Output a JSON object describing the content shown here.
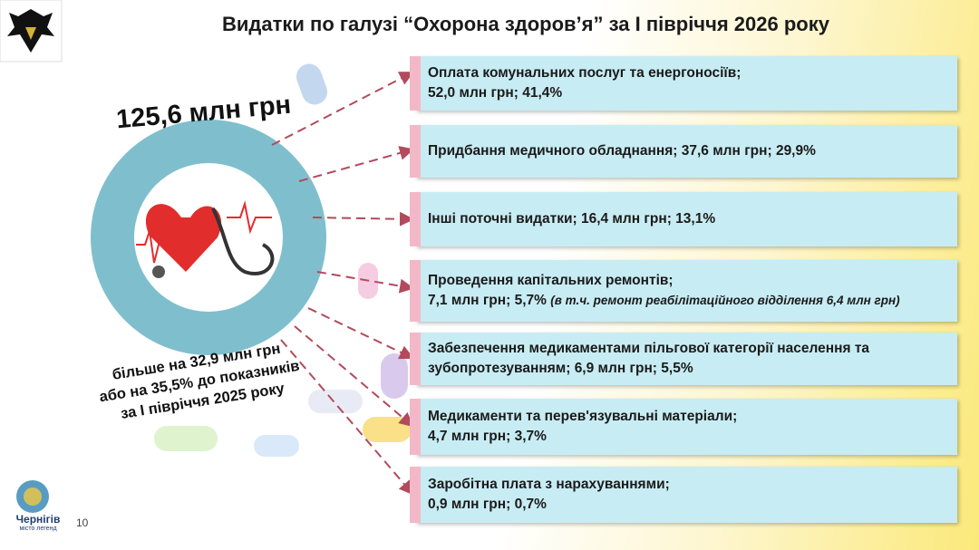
{
  "header": {
    "title": "Видатки по галузі “Охорона здоров’я” за І півріччя 2026 року"
  },
  "total": "125,6 млн грн",
  "comparison": [
    "більше на 32,9 млн грн",
    "або на 35,5% до показників",
    "за І півріччя 2025 року"
  ],
  "items": [
    {
      "lines": [
        "Оплата комунальних послуг та енергоносіїв;",
        "52,0 млн грн; 41,4%"
      ]
    },
    {
      "lines": [
        "Придбання медичного обладнання; 37,6 млн грн; 29,9%"
      ]
    },
    {
      "lines": [
        "Інші поточні видатки; 16,4 млн грн; 13,1%"
      ]
    },
    {
      "lines": [
        "Проведення капітальних ремонтів;",
        "7,1 млн грн; 5,7%"
      ],
      "note": "(в т.ч. ремонт реабілітаційного відділення 6,4 млн грн)"
    },
    {
      "lines": [
        "Забезпечення медикаментами пільгової категорії населення та",
        "зубопротезуванням; 6,9 млн грн; 5,5%"
      ]
    },
    {
      "lines": [
        "Медикаменти та перев'язувальні матеріали;",
        "4,7 млн грн; 3,7%"
      ]
    },
    {
      "lines": [
        "Заробітна плата з нарахуваннями;",
        "0,9 млн грн; 0,7%"
      ]
    }
  ],
  "footer": {
    "logo_text": "Чернігів",
    "logo_subtext": "місто легенд",
    "page_number": "10"
  }
}
